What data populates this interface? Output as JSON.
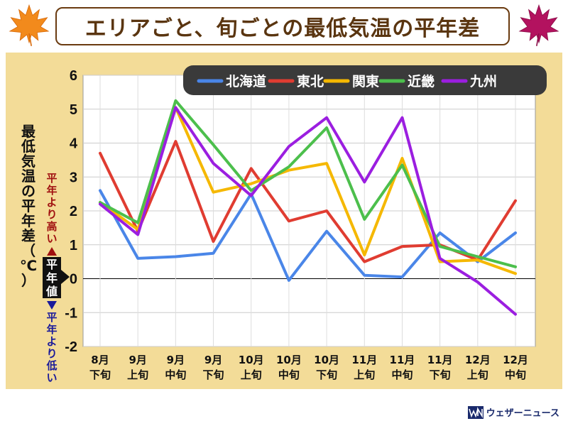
{
  "title": "エリアごと、旬ごとの最低気温の平年差",
  "brand": "ウェザーニュース",
  "colors": {
    "accent_brown": "#5a3510",
    "panel_bg": "#f3dc98",
    "above_text": "#a01010",
    "below_text": "#1a1a9a"
  },
  "icons": {
    "left": "orange-maple-leaf-icon",
    "right": "magenta-maple-leaf-icon",
    "logo": "weathernews-logo-icon"
  },
  "chart_data": {
    "type": "line",
    "title": "エリアごと、旬ごとの最低気温の平年差",
    "ylabel": "最低気温の平年差（℃）",
    "ylabel_above": "平年より高い",
    "ylabel_zero": "平年値",
    "ylabel_below": "平年より低い",
    "ylim": [
      -2,
      6
    ],
    "yticks": [
      6,
      5,
      4,
      3,
      2,
      1,
      0,
      -1,
      -2
    ],
    "grid": true,
    "legend_position": "top-right",
    "categories": [
      [
        "8月",
        "下旬"
      ],
      [
        "9月",
        "上旬"
      ],
      [
        "9月",
        "中旬"
      ],
      [
        "9月",
        "下旬"
      ],
      [
        "10月",
        "上旬"
      ],
      [
        "10月",
        "中旬"
      ],
      [
        "10月",
        "下旬"
      ],
      [
        "11月",
        "上旬"
      ],
      [
        "11月",
        "中旬"
      ],
      [
        "11月",
        "下旬"
      ],
      [
        "12月",
        "上旬"
      ],
      [
        "12月",
        "中旬"
      ]
    ],
    "series": [
      {
        "name": "北海道",
        "color": "#4a86e8",
        "values": [
          2.6,
          0.6,
          0.65,
          0.75,
          2.5,
          -0.05,
          1.4,
          0.1,
          0.05,
          1.35,
          0.5,
          1.35
        ]
      },
      {
        "name": "東北",
        "color": "#e03c31",
        "values": [
          3.7,
          1.4,
          4.05,
          1.1,
          3.25,
          1.7,
          2.0,
          0.5,
          0.95,
          1.0,
          0.55,
          2.3
        ]
      },
      {
        "name": "関東",
        "color": "#f5b800",
        "values": [
          2.25,
          1.45,
          5.05,
          2.55,
          2.8,
          3.2,
          3.4,
          0.7,
          3.55,
          0.5,
          0.55,
          0.15
        ]
      },
      {
        "name": "近畿",
        "color": "#4cbf4c",
        "values": [
          2.25,
          1.65,
          5.25,
          3.95,
          2.6,
          3.3,
          4.45,
          1.75,
          3.35,
          0.95,
          0.65,
          0.35
        ]
      },
      {
        "name": "九州",
        "color": "#9b1ee0",
        "values": [
          2.2,
          1.3,
          5.05,
          3.4,
          2.45,
          3.9,
          4.75,
          2.85,
          4.75,
          0.6,
          -0.1,
          -1.05
        ]
      }
    ]
  }
}
